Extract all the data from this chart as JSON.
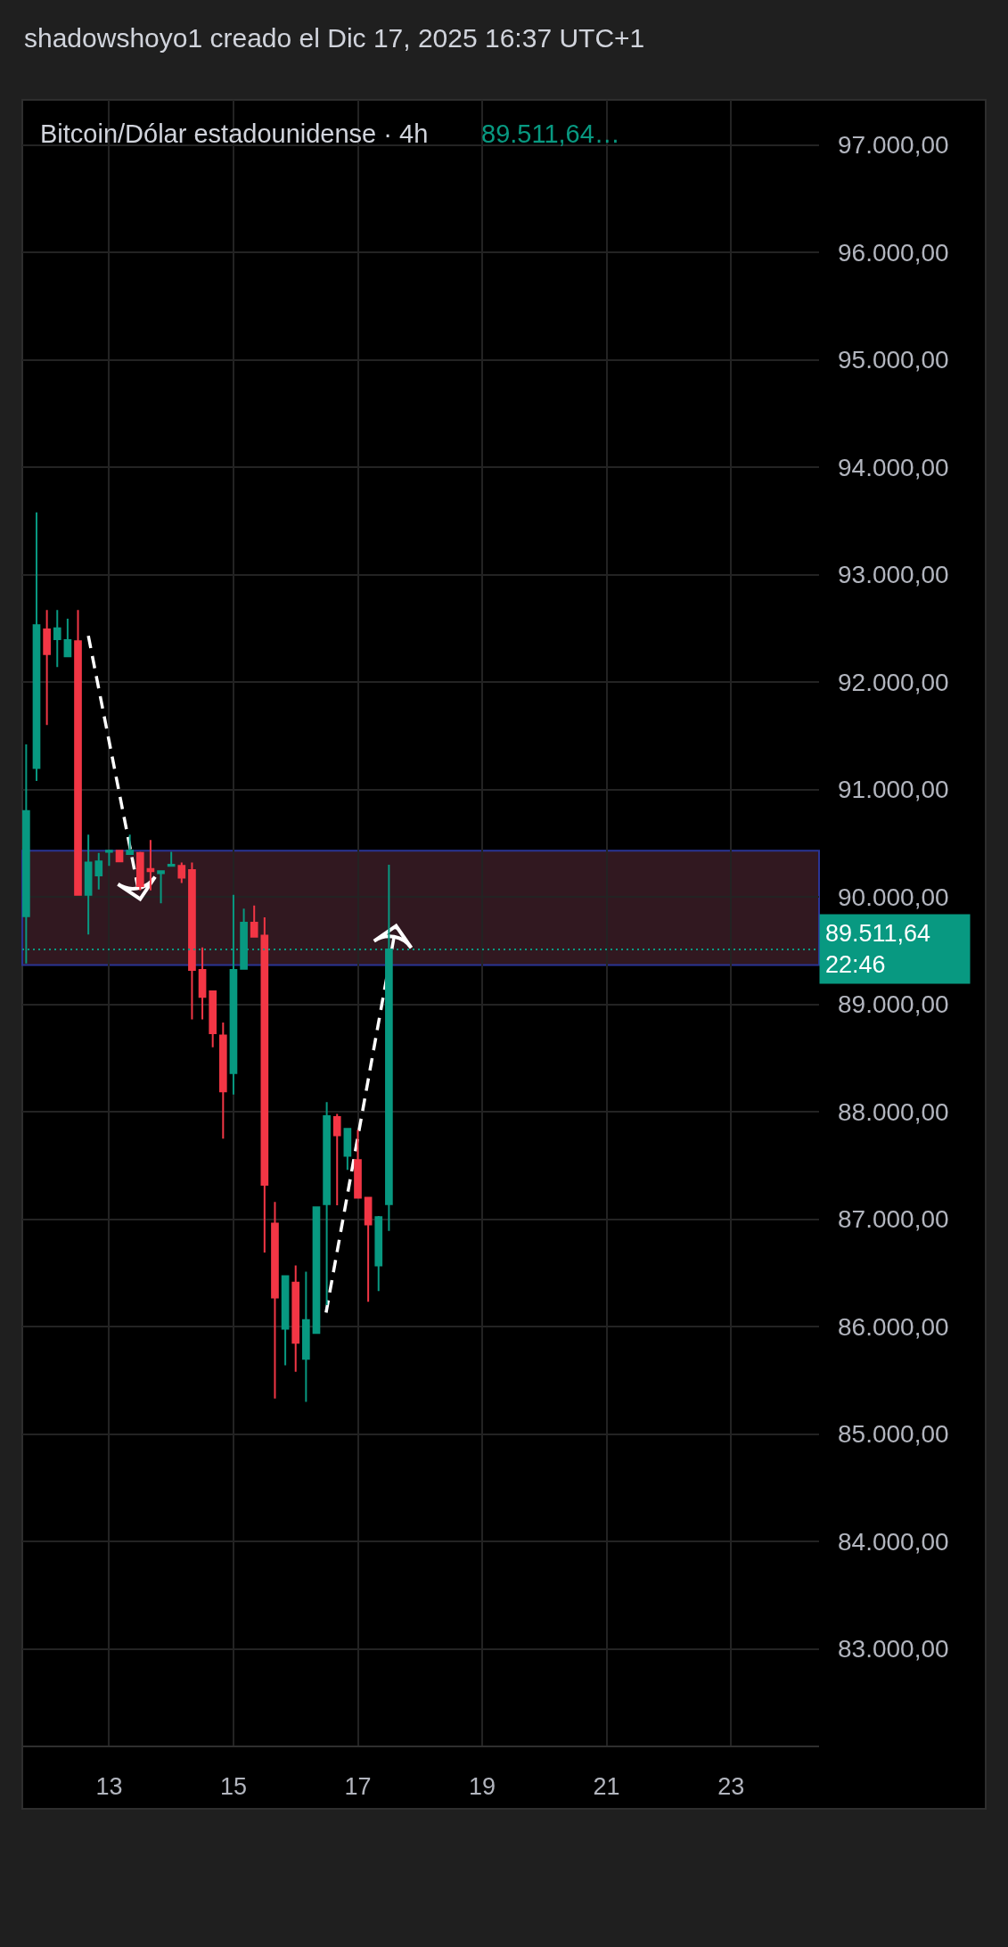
{
  "chart_data": {
    "type": "candlestick",
    "title": "Bitcoin/Dólar estadounidense · 4h",
    "subtitle": "89.511,64…",
    "annotations": [
      "shadowshoyo1 creado el Dic 17, 2025 16:37 UTC+1"
    ],
    "x": [
      "2025-12-11T16:00",
      "2025-12-11T20:00",
      "2025-12-12T00:00",
      "2025-12-12T04:00",
      "2025-12-12T08:00",
      "2025-12-12T12:00",
      "2025-12-12T16:00",
      "2025-12-12T20:00",
      "2025-12-13T00:00",
      "2025-12-13T04:00",
      "2025-12-13T08:00",
      "2025-12-13T12:00",
      "2025-12-13T16:00",
      "2025-12-13T20:00",
      "2025-12-14T00:00",
      "2025-12-14T04:00",
      "2025-12-14T08:00",
      "2025-12-14T12:00",
      "2025-12-14T16:00",
      "2025-12-14T20:00",
      "2025-12-15T00:00",
      "2025-12-15T04:00",
      "2025-12-15T08:00",
      "2025-12-15T12:00",
      "2025-12-15T16:00",
      "2025-12-15T20:00",
      "2025-12-16T00:00",
      "2025-12-16T04:00",
      "2025-12-16T08:00",
      "2025-12-16T12:00",
      "2025-12-16T16:00",
      "2025-12-16T20:00",
      "2025-12-17T00:00",
      "2025-12-17T04:00",
      "2025-12-17T08:00",
      "2025-12-17T12:00"
    ],
    "ohlc": [
      [
        89820,
        91420,
        89380,
        90800
      ],
      [
        91200,
        93580,
        91080,
        92530
      ],
      [
        92490,
        92670,
        91600,
        92260
      ],
      [
        92400,
        92670,
        92140,
        92500
      ],
      [
        92240,
        92590,
        92230,
        92390
      ],
      [
        92380,
        92670,
        90020,
        90020
      ],
      [
        90020,
        90580,
        89650,
        90320
      ],
      [
        90200,
        90410,
        90070,
        90330
      ],
      [
        90420,
        90440,
        90290,
        90430
      ],
      [
        90430,
        90430,
        90330,
        90330
      ],
      [
        90400,
        90580,
        90400,
        90430
      ],
      [
        90410,
        90420,
        90060,
        90100
      ],
      [
        90260,
        90530,
        90060,
        90240
      ],
      [
        90220,
        90240,
        89940,
        90240
      ],
      [
        90290,
        90420,
        90280,
        90300
      ],
      [
        90290,
        90320,
        90130,
        90180
      ],
      [
        90250,
        90320,
        88860,
        89320
      ],
      [
        89320,
        89530,
        88860,
        89070
      ],
      [
        89120,
        89120,
        88600,
        88730
      ],
      [
        88710,
        88830,
        87750,
        88190
      ],
      [
        88360,
        90020,
        88160,
        89320
      ],
      [
        89330,
        89890,
        89330,
        89760
      ],
      [
        89760,
        89920,
        89630,
        89630
      ],
      [
        89640,
        89810,
        86690,
        87320
      ],
      [
        86960,
        87160,
        85330,
        86270
      ],
      [
        85980,
        86470,
        85640,
        86470
      ],
      [
        86410,
        86570,
        85580,
        85850
      ],
      [
        85700,
        86510,
        85300,
        86060
      ],
      [
        85940,
        87110,
        85940,
        87110
      ],
      [
        87140,
        88090,
        86200,
        87960
      ],
      [
        87950,
        87980,
        87130,
        87780
      ],
      [
        87590,
        87840,
        87460,
        87840
      ],
      [
        87550,
        87830,
        87200,
        87200
      ],
      [
        87200,
        87200,
        86230,
        86950
      ],
      [
        86570,
        87030,
        86330,
        87020
      ],
      [
        87140,
        90300,
        86890,
        89511.64
      ]
    ],
    "colors": [
      "#089981",
      "#089981",
      "#f23645",
      "#089981",
      "#089981",
      "#f23645",
      "#089981",
      "#089981",
      "#089981",
      "#f23645",
      "#089981",
      "#f23645",
      "#f23645",
      "#089981",
      "#089981",
      "#f23645",
      "#f23645",
      "#f23645",
      "#f23645",
      "#f23645",
      "#089981",
      "#089981",
      "#f23645",
      "#f23645",
      "#f23645",
      "#089981",
      "#f23645",
      "#089981",
      "#089981",
      "#089981",
      "#f23645",
      "#089981",
      "#f23645",
      "#f23645",
      "#089981",
      "#089981"
    ],
    "series": [
      {
        "type": "line",
        "x": [
          "2025-12-12T16:00",
          "2025-12-13T12:00"
        ],
        "values": [
          92430,
          89980
        ],
        "color": "#ffffff"
      },
      {
        "type": "line",
        "x": [
          "2025-12-16T11:45",
          "2025-12-17T14:45"
        ],
        "values": [
          86130,
          89730
        ],
        "color": "#ffffff"
      }
    ],
    "line_style": "dashed",
    "bands": [
      {
        "axis": "y",
        "from": 89365,
        "to": 90430,
        "color": "#311820"
      }
    ],
    "ref_lines": [
      {
        "axis": "y",
        "value": 89511.64,
        "label": "89.511,64\n22:46",
        "color": "#089981",
        "line_style": "dotted"
      }
    ],
    "xlim": [
      "2025-12-11T14:30",
      "2025-12-24T10:00"
    ],
    "xticks": [
      {
        "value": "2025-12-13",
        "label": "13"
      },
      {
        "value": "2025-12-15",
        "label": "15"
      },
      {
        "value": "2025-12-17",
        "label": "17"
      },
      {
        "value": "2025-12-19",
        "label": "19"
      },
      {
        "value": "2025-12-21",
        "label": "21"
      },
      {
        "value": "2025-12-23",
        "label": "23"
      }
    ],
    "ylim": [
      82100,
      97420
    ],
    "yticks": [
      {
        "value": 83000,
        "label": "83.000,00"
      },
      {
        "value": 84000,
        "label": "84.000,00"
      },
      {
        "value": 85000,
        "label": "85.000,00"
      },
      {
        "value": 86000,
        "label": "86.000,00"
      },
      {
        "value": 87000,
        "label": "87.000,00"
      },
      {
        "value": 88000,
        "label": "88.000,00"
      },
      {
        "value": 89000,
        "label": "89.000,00"
      },
      {
        "value": 90000,
        "label": "90.000,00"
      },
      {
        "value": 91000,
        "label": "91.000,00"
      },
      {
        "value": 92000,
        "label": "92.000,00"
      },
      {
        "value": 93000,
        "label": "93.000,00"
      },
      {
        "value": 94000,
        "label": "94.000,00"
      },
      {
        "value": 95000,
        "label": "95.000,00"
      },
      {
        "value": 96000,
        "label": "96.000,00"
      },
      {
        "value": 97000,
        "label": "97.000,00"
      }
    ],
    "grid": true
  }
}
